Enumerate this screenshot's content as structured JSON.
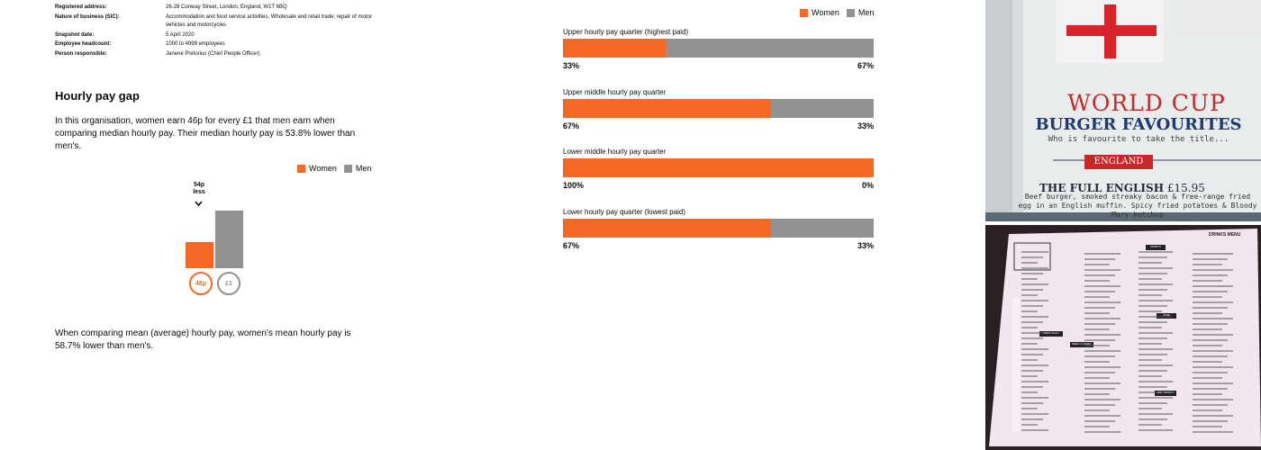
{
  "details": [
    {
      "label": "Registered address:",
      "value": "26-28 Conway Street, London, England, W1T 6BQ"
    },
    {
      "label": "Nature of business (SIC):",
      "value": "Accommodation and food service activities, Wholesale and retail trade; repair of motor vehicles and motorcycles"
    },
    {
      "label": "Snapshot date:",
      "value": "5 April 2020"
    },
    {
      "label": "Employee headcount:",
      "value": "1000 to 4999 employees"
    },
    {
      "label": "Person responsible:",
      "value": "Janene Pretorius (Chief People Officer)"
    }
  ],
  "hourly": {
    "heading": "Hourly pay gap",
    "median_text": "In this organisation, women earn 46p for every £1 that men earn when comparing median hourly pay. Their median hourly pay is 53.8% lower than men's.",
    "mean_text": "When comparing mean (average) hourly pay, women's mean hourly pay is 58.7% lower than men's."
  },
  "legend": {
    "women": "Women",
    "men": "Men"
  },
  "colors": {
    "women": "#f46a25",
    "men": "#929191"
  },
  "gap_chart": {
    "annotation_line1": "54p",
    "annotation_line2": "less",
    "arrow": "chevron-down-icon",
    "women_label": "46p",
    "men_label": "£1",
    "women_value": 0.46,
    "men_value": 1.0
  },
  "chart_data": {
    "type": "bar",
    "categories": [
      "Upper hourly pay quarter (highest paid)",
      "Upper middle hourly pay quarter",
      "Lower middle hourly pay quarter",
      "Lower hourly pay quarter (lowest paid)"
    ],
    "series": [
      {
        "name": "Women",
        "values": [
          33,
          67,
          100,
          67
        ]
      },
      {
        "name": "Men",
        "values": [
          67,
          33,
          0,
          33
        ]
      }
    ],
    "women_labels": [
      "33%",
      "67%",
      "100%",
      "67%"
    ],
    "men_labels": [
      "67%",
      "33%",
      "0%",
      "33%"
    ],
    "legend_position": "top-right",
    "stacked": true
  },
  "photo_top": {
    "title": "WORLD CUP",
    "subtitle": "BURGER FAVOURITES",
    "tagline": "Who is favourite to take the title...",
    "badge": "ENGLAND",
    "item_name": "THE FULL ENGLISH",
    "item_price": "£15.95",
    "item_desc": "Beef burger, smoked streaky bacon & free-range fried egg in an English muffin. Spicy fried potatoes & Bloody Mary ketchup"
  },
  "photo_bottom": {
    "header": "DRINKS MENU",
    "sections": [
      "SPIRITS",
      "BEER & CIDER",
      "WINE",
      "HOT DRINKS",
      "COCKTAILS"
    ]
  }
}
